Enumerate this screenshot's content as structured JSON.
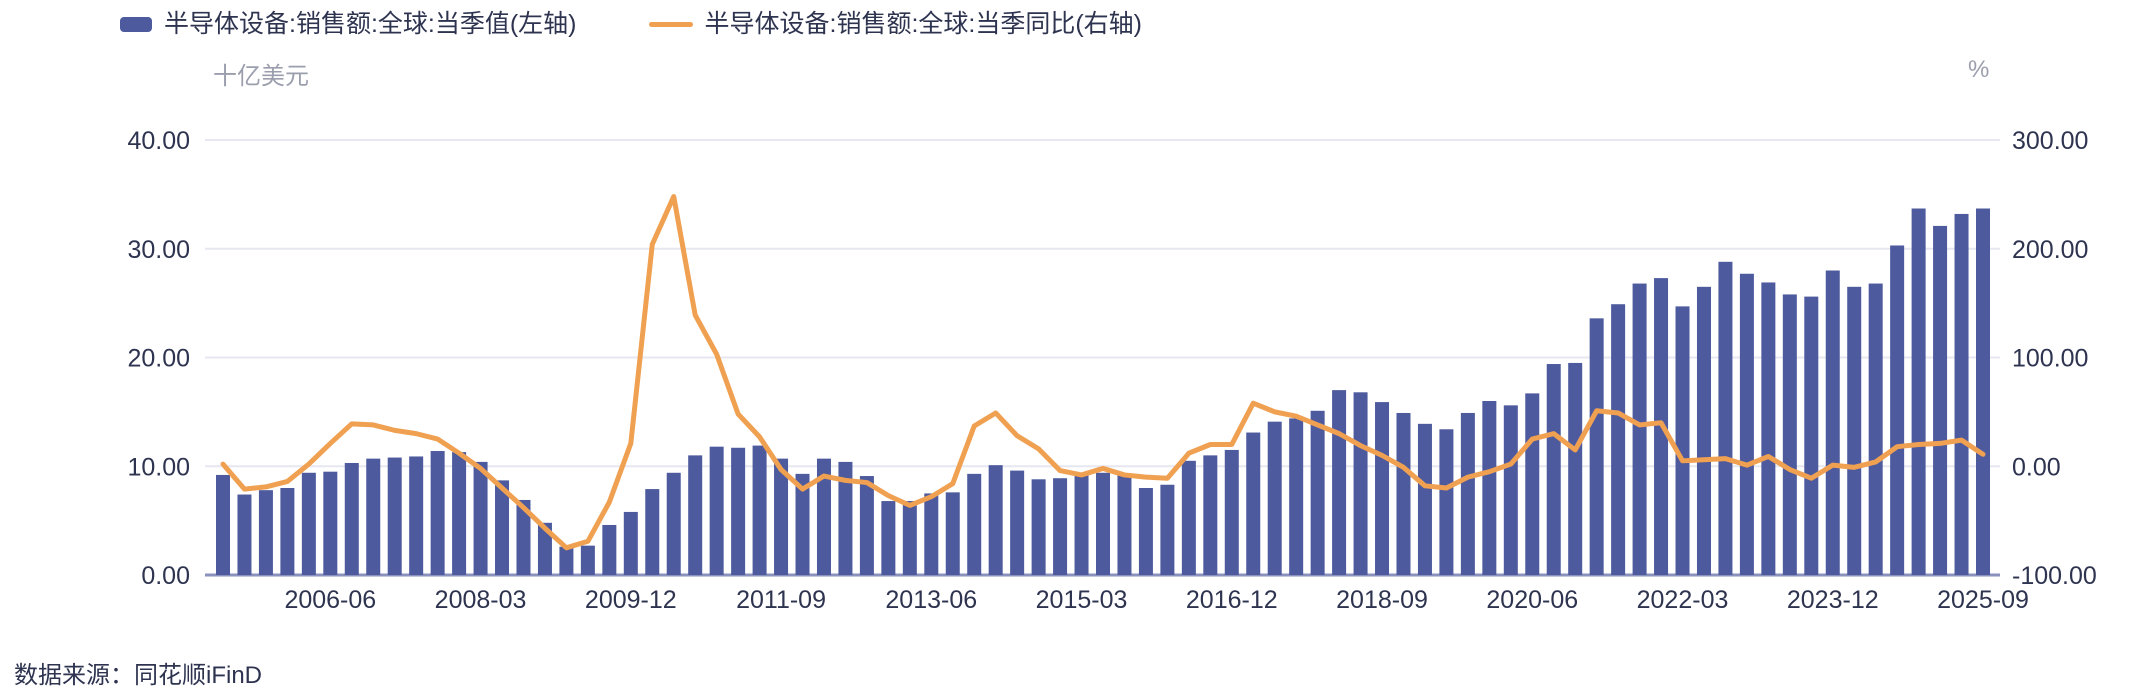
{
  "legend": {
    "bar_label": "半导体设备:销售额:全球:当季值(左轴)",
    "line_label": "半导体设备:销售额:全球:当季同比(右轴)"
  },
  "axes": {
    "left_unit": "十亿美元",
    "right_unit": "%",
    "left_ticks": [
      "40.00",
      "30.00",
      "20.00",
      "10.00",
      "0.00"
    ],
    "right_ticks": [
      "300.00",
      "200.00",
      "100.00",
      "0.00",
      "-100.00"
    ]
  },
  "source": "数据来源：同花顺iFinD",
  "colors": {
    "bar": "#4d5a9d",
    "line": "#f0a051",
    "text": "#2e3450",
    "muted": "#9b9fad",
    "grid": "#e7e7f1",
    "axis_line": "#8a92bd"
  },
  "chart_data": {
    "type": "bar",
    "combo": "bar+line",
    "title": "",
    "xlabel": "",
    "ylabel_left": "十亿美元",
    "ylabel_right": "%",
    "left_axis": {
      "min": 0,
      "max": 40,
      "tick_step": 10
    },
    "right_axis": {
      "min": -100,
      "max": 300,
      "tick_step": 100
    },
    "grid": true,
    "legend_position": "top-left",
    "x_tick_labels": [
      "2006-06",
      "2008-03",
      "2009-12",
      "2011-09",
      "2013-06",
      "2015-03",
      "2016-12",
      "2018-09",
      "2020-06",
      "2022-03",
      "2023-12",
      "2025-09"
    ],
    "x_tick_indices": [
      5,
      12,
      19,
      26,
      33,
      40,
      47,
      54,
      61,
      68,
      75,
      82
    ],
    "categories": [
      "2005-03",
      "2005-06",
      "2005-09",
      "2005-12",
      "2006-03",
      "2006-06",
      "2006-09",
      "2006-12",
      "2007-03",
      "2007-06",
      "2007-09",
      "2007-12",
      "2008-03",
      "2008-06",
      "2008-09",
      "2008-12",
      "2009-03",
      "2009-06",
      "2009-09",
      "2009-12",
      "2010-03",
      "2010-06",
      "2010-09",
      "2010-12",
      "2011-03",
      "2011-06",
      "2011-09",
      "2011-12",
      "2012-03",
      "2012-06",
      "2012-09",
      "2012-12",
      "2013-03",
      "2013-06",
      "2013-09",
      "2013-12",
      "2014-03",
      "2014-06",
      "2014-09",
      "2014-12",
      "2015-03",
      "2015-06",
      "2015-09",
      "2015-12",
      "2016-03",
      "2016-06",
      "2016-09",
      "2016-12",
      "2017-03",
      "2017-06",
      "2017-09",
      "2017-12",
      "2018-03",
      "2018-06",
      "2018-09",
      "2018-12",
      "2019-03",
      "2019-06",
      "2019-09",
      "2019-12",
      "2020-03",
      "2020-06",
      "2020-09",
      "2020-12",
      "2021-03",
      "2021-06",
      "2021-09",
      "2021-12",
      "2022-03",
      "2022-06",
      "2022-09",
      "2022-12",
      "2023-03",
      "2023-06",
      "2023-09",
      "2023-12",
      "2024-03",
      "2024-06",
      "2024-09",
      "2024-12",
      "2025-03",
      "2025-06",
      "2025-09"
    ],
    "series": [
      {
        "name": "半导体设备:销售额:全球:当季值(左轴)",
        "type": "bar",
        "axis": "left",
        "unit": "十亿美元",
        "values": [
          9.2,
          7.4,
          7.8,
          8.0,
          9.4,
          9.5,
          10.3,
          10.7,
          10.8,
          10.9,
          11.4,
          11.3,
          10.4,
          8.7,
          6.9,
          4.8,
          2.6,
          2.7,
          4.6,
          5.8,
          7.9,
          9.4,
          11.0,
          11.8,
          11.7,
          11.9,
          10.7,
          9.3,
          10.7,
          10.4,
          9.1,
          6.8,
          6.8,
          7.5,
          7.6,
          9.3,
          10.1,
          9.6,
          8.8,
          8.9,
          9.3,
          9.4,
          9.2,
          8.0,
          8.3,
          10.5,
          11.0,
          11.5,
          13.1,
          14.1,
          14.4,
          15.1,
          17.0,
          16.8,
          15.9,
          14.9,
          13.9,
          13.4,
          14.9,
          16.0,
          15.6,
          16.7,
          19.4,
          19.5,
          23.6,
          24.9,
          26.8,
          27.3,
          24.7,
          26.5,
          28.8,
          27.7,
          26.9,
          25.8,
          25.6,
          28.0,
          26.5,
          26.8,
          30.3,
          33.7,
          32.1,
          33.2,
          33.7
        ]
      },
      {
        "name": "半导体设备:销售额:全球:当季同比(右轴)",
        "type": "line",
        "axis": "right",
        "unit": "%",
        "values": [
          2,
          -21,
          -19,
          -14,
          2,
          21,
          39,
          38,
          33,
          30,
          25,
          12,
          -2,
          -20,
          -38,
          -57,
          -75,
          -69,
          -33,
          21,
          204,
          248,
          139,
          103,
          48,
          27,
          -3,
          -21,
          -9,
          -13,
          -15,
          -27,
          -36,
          -28,
          -16,
          37,
          49,
          28,
          16,
          -4,
          -8,
          -2,
          -8,
          -10,
          -11,
          12,
          20,
          20,
          58,
          50,
          46,
          38,
          30,
          19,
          10,
          -1,
          -18,
          -20,
          -10,
          -5,
          2,
          25,
          30,
          15,
          51,
          49,
          38,
          40,
          5,
          6,
          7,
          1,
          9,
          -3,
          -11,
          1,
          -1,
          4,
          18,
          20,
          21,
          24,
          11
        ]
      }
    ]
  }
}
